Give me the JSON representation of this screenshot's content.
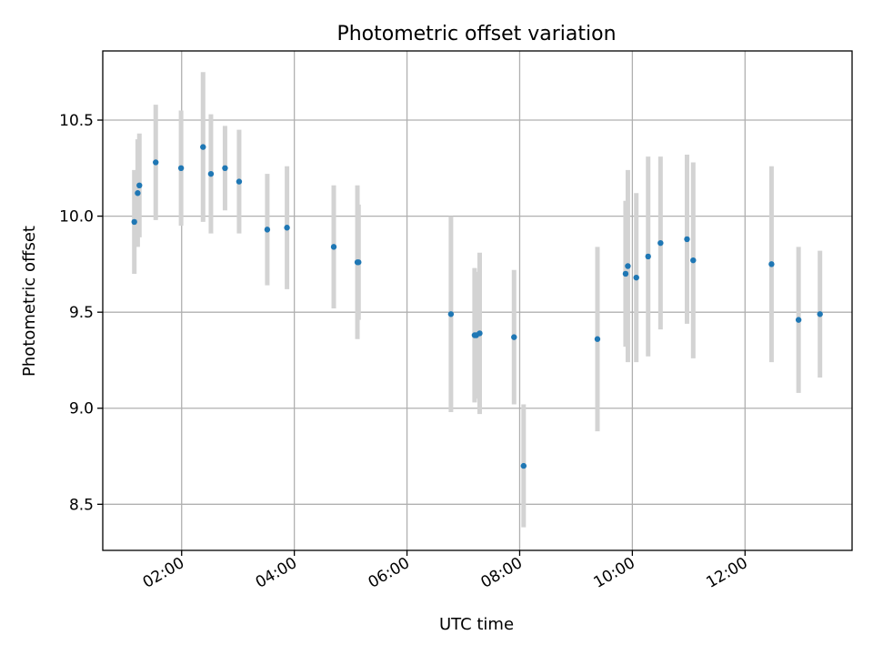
{
  "chart_data": {
    "type": "scatter",
    "title": "Photometric offset variation",
    "xlabel": "UTC time",
    "ylabel": "Photometric offset",
    "x_unit": "hours UTC",
    "xlim": [
      0.6,
      13.9
    ],
    "ylim": [
      8.26,
      10.86
    ],
    "xticks": [
      {
        "value": 2,
        "label": "02:00"
      },
      {
        "value": 4,
        "label": "04:00"
      },
      {
        "value": 6,
        "label": "06:00"
      },
      {
        "value": 8,
        "label": "08:00"
      },
      {
        "value": 10,
        "label": "10:00"
      },
      {
        "value": 12,
        "label": "12:00"
      }
    ],
    "yticks": [
      {
        "value": 8.5,
        "label": "8.5"
      },
      {
        "value": 9.0,
        "label": "9.0"
      },
      {
        "value": 9.5,
        "label": "9.5"
      },
      {
        "value": 10.0,
        "label": "10.0"
      },
      {
        "value": 10.5,
        "label": "10.5"
      }
    ],
    "grid": true,
    "marker_color": "#1f77b4",
    "errorbar_color": "#d3d3d3",
    "series": [
      {
        "name": "offset",
        "points": [
          {
            "x": 1.16,
            "y": 9.97,
            "err": 0.27
          },
          {
            "x": 1.22,
            "y": 10.12,
            "err": 0.28
          },
          {
            "x": 1.25,
            "y": 10.16,
            "err": 0.27
          },
          {
            "x": 1.54,
            "y": 10.28,
            "err": 0.3
          },
          {
            "x": 1.99,
            "y": 10.25,
            "err": 0.3
          },
          {
            "x": 2.38,
            "y": 10.36,
            "err": 0.39
          },
          {
            "x": 2.52,
            "y": 10.22,
            "err": 0.31
          },
          {
            "x": 2.77,
            "y": 10.25,
            "err": 0.22
          },
          {
            "x": 3.02,
            "y": 10.18,
            "err": 0.27
          },
          {
            "x": 3.52,
            "y": 9.93,
            "err": 0.29
          },
          {
            "x": 3.87,
            "y": 9.94,
            "err": 0.32
          },
          {
            "x": 4.7,
            "y": 9.84,
            "err": 0.32
          },
          {
            "x": 5.12,
            "y": 9.76,
            "err": 0.4
          },
          {
            "x": 5.14,
            "y": 9.76,
            "err": 0.3
          },
          {
            "x": 6.78,
            "y": 9.49,
            "err": 0.51
          },
          {
            "x": 7.2,
            "y": 9.38,
            "err": 0.35
          },
          {
            "x": 7.23,
            "y": 9.38,
            "err": 0.33
          },
          {
            "x": 7.29,
            "y": 9.39,
            "err": 0.42
          },
          {
            "x": 7.9,
            "y": 9.37,
            "err": 0.35
          },
          {
            "x": 8.07,
            "y": 8.7,
            "err": 0.32
          },
          {
            "x": 9.38,
            "y": 9.36,
            "err": 0.48
          },
          {
            "x": 9.88,
            "y": 9.7,
            "err": 0.38
          },
          {
            "x": 9.92,
            "y": 9.74,
            "err": 0.5
          },
          {
            "x": 10.07,
            "y": 9.68,
            "err": 0.44
          },
          {
            "x": 10.28,
            "y": 9.79,
            "err": 0.52
          },
          {
            "x": 10.5,
            "y": 9.86,
            "err": 0.45
          },
          {
            "x": 10.97,
            "y": 9.88,
            "err": 0.44
          },
          {
            "x": 11.08,
            "y": 9.77,
            "err": 0.51
          },
          {
            "x": 12.47,
            "y": 9.75,
            "err": 0.51
          },
          {
            "x": 12.95,
            "y": 9.46,
            "err": 0.38
          },
          {
            "x": 13.33,
            "y": 9.49,
            "err": 0.33
          }
        ]
      }
    ]
  }
}
